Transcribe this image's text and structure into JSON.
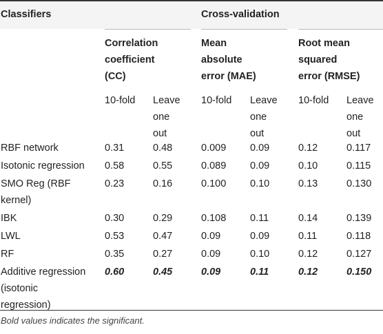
{
  "header": {
    "classifiers": "Classifiers",
    "cross_validation": "Cross-validation",
    "metrics": [
      {
        "lines": [
          "Correlation",
          "coefficient",
          "(CC)"
        ]
      },
      {
        "lines": [
          "Mean",
          "absolute",
          "error (MAE)"
        ]
      },
      {
        "lines": [
          "Root mean",
          "squared",
          "error (RMSE)"
        ]
      }
    ],
    "fold_label": "10-fold",
    "loo_lines": [
      "Leave",
      "one",
      "out"
    ]
  },
  "rows": [
    {
      "name": [
        "RBF network"
      ],
      "values": [
        "0.31",
        "0.48",
        "0.009",
        "0.09",
        "0.12",
        "0.117"
      ],
      "bold": false
    },
    {
      "name": [
        "Isotonic regression"
      ],
      "values": [
        "0.58",
        "0.55",
        "0.089",
        "0.09",
        "0.10",
        "0.115"
      ],
      "bold": false
    },
    {
      "name": [
        "SMO Reg (RBF",
        "kernel)"
      ],
      "values": [
        "0.23",
        "0.16",
        "0.100",
        "0.10",
        "0.13",
        "0.130"
      ],
      "bold": false
    },
    {
      "name": [
        "IBK"
      ],
      "values": [
        "0.30",
        "0.29",
        "0.108",
        "0.11",
        "0.14",
        "0.139"
      ],
      "bold": false
    },
    {
      "name": [
        "LWL"
      ],
      "values": [
        "0.53",
        "0.47",
        "0.09",
        "0.09",
        "0.11",
        "0.118"
      ],
      "bold": false
    },
    {
      "name": [
        "RF"
      ],
      "values": [
        "0.35",
        "0.27",
        "0.09",
        "0.10",
        "0.12",
        "0.127"
      ],
      "bold": false
    },
    {
      "name": [
        "Additive regression",
        "(isotonic",
        "regression)"
      ],
      "values": [
        "0.60",
        "0.45",
        "0.09",
        "0.11",
        "0.12",
        "0.150"
      ],
      "bold": true
    }
  ],
  "footnote": "Bold values indicates the significant."
}
